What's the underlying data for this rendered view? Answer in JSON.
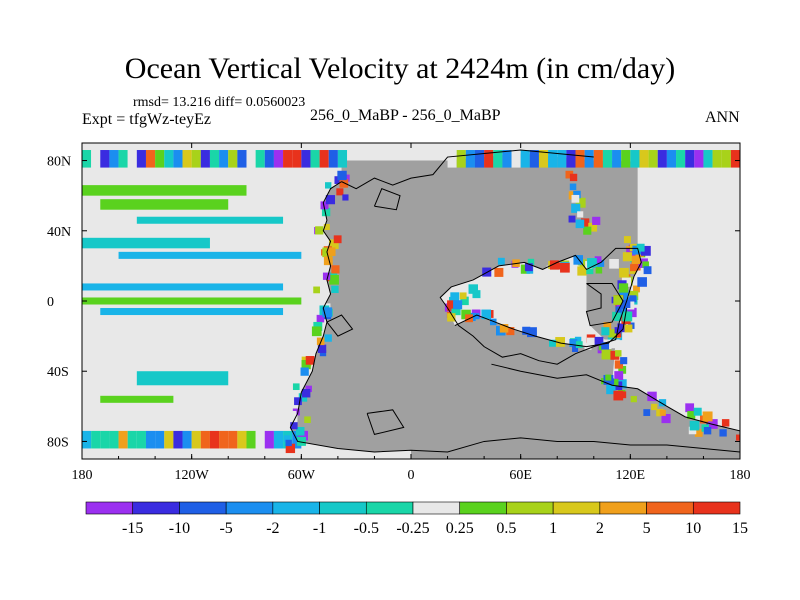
{
  "header": {
    "title": "Ocean Vertical Velocity at 2424m (in cm/day)",
    "stats": "rmsd= 13.216 diff= 0.0560023",
    "experiment": "Expt = tfgWz-teyEz",
    "subtitle": "256_0_MaBP - 256_0_MaBP",
    "season": "ANN"
  },
  "chart_data": {
    "type": "heatmap",
    "title": "Ocean Vertical Velocity at 2424m (in cm/day)",
    "xlabel": "",
    "ylabel": "",
    "xlim": [
      -180,
      180
    ],
    "ylim": [
      -90,
      90
    ],
    "x_ticks": [
      {
        "value": -180,
        "label": "180"
      },
      {
        "value": -120,
        "label": "120W"
      },
      {
        "value": -60,
        "label": "60W"
      },
      {
        "value": 0,
        "label": "0"
      },
      {
        "value": 60,
        "label": "60E"
      },
      {
        "value": 120,
        "label": "120E"
      },
      {
        "value": 180,
        "label": "180"
      }
    ],
    "y_ticks": [
      {
        "value": 80,
        "label": "80N"
      },
      {
        "value": 40,
        "label": "40N"
      },
      {
        "value": 0,
        "label": "0"
      },
      {
        "value": -40,
        "label": "40S"
      },
      {
        "value": -80,
        "label": "80S"
      }
    ],
    "colorbar": {
      "levels": [
        "-15",
        "-10",
        "-5",
        "-2",
        "-1",
        "-0.5",
        "-0.25",
        "0.25",
        "0.5",
        "1",
        "2",
        "5",
        "10",
        "15"
      ],
      "colors": [
        "#9b30f0",
        "#3a2ce0",
        "#1f5fe6",
        "#1b8ef0",
        "#19b4e8",
        "#16c8c8",
        "#1ad6a8",
        "#e8e8e8",
        "#5ad21e",
        "#a8d21a",
        "#d8c81c",
        "#f0a01c",
        "#f0641c",
        "#e8321c"
      ]
    },
    "land_color": "#a0a0a0",
    "continent_outlines": [
      {
        "name": "pangea-west-margin",
        "points": [
          [
            -38,
            68
          ],
          [
            -44,
            64
          ],
          [
            -48,
            56
          ],
          [
            -46,
            46
          ],
          [
            -48,
            40
          ],
          [
            -44,
            34
          ],
          [
            -46,
            28
          ],
          [
            -44,
            20
          ],
          [
            -46,
            12
          ],
          [
            -44,
            4
          ],
          [
            -48,
            -4
          ],
          [
            -46,
            -12
          ],
          [
            -48,
            -20
          ],
          [
            -52,
            -30
          ],
          [
            -54,
            -40
          ],
          [
            -60,
            -52
          ],
          [
            -62,
            -64
          ],
          [
            -66,
            -72
          ],
          [
            -62,
            -80
          ],
          [
            -40,
            -84
          ],
          [
            -20,
            -86
          ],
          [
            0,
            -85
          ],
          [
            20,
            -86
          ],
          [
            40,
            -80
          ],
          [
            60,
            -78
          ],
          [
            80,
            -80
          ],
          [
            100,
            -80
          ],
          [
            120,
            -82
          ],
          [
            140,
            -82
          ],
          [
            160,
            -84
          ],
          [
            180,
            -86
          ]
        ]
      },
      {
        "name": "north-coast",
        "points": [
          [
            -38,
            68
          ],
          [
            -30,
            64
          ],
          [
            -20,
            70
          ],
          [
            -10,
            66
          ],
          [
            0,
            70
          ],
          [
            12,
            72
          ],
          [
            20,
            82
          ],
          [
            40,
            84
          ],
          [
            60,
            86
          ],
          [
            80,
            84
          ],
          [
            100,
            82
          ]
        ]
      },
      {
        "name": "tethys-upper-shore",
        "points": [
          [
            20,
            -4
          ],
          [
            16,
            2
          ],
          [
            22,
            8
          ],
          [
            34,
            12
          ],
          [
            48,
            20
          ],
          [
            62,
            22
          ],
          [
            72,
            18
          ],
          [
            80,
            22
          ],
          [
            90,
            26
          ],
          [
            96,
            18
          ],
          [
            104,
            22
          ],
          [
            112,
            30
          ],
          [
            124,
            30
          ],
          [
            126,
            22
          ],
          [
            122,
            14
          ],
          [
            118,
            0
          ],
          [
            114,
            -12
          ],
          [
            112,
            -22
          ],
          [
            100,
            -26
          ],
          [
            90,
            -30
          ],
          [
            80,
            -36
          ],
          [
            70,
            -34
          ],
          [
            60,
            -30
          ],
          [
            50,
            -32
          ],
          [
            40,
            -26
          ],
          [
            34,
            -20
          ],
          [
            26,
            -14
          ],
          [
            20,
            -4
          ]
        ]
      },
      {
        "name": "tethys-lower-shore",
        "points": [
          [
            24,
            -14
          ],
          [
            36,
            -8
          ],
          [
            46,
            -12
          ],
          [
            56,
            -16
          ],
          [
            68,
            -20
          ],
          [
            82,
            -24
          ],
          [
            96,
            -26
          ],
          [
            108,
            -24
          ],
          [
            116,
            -16
          ],
          [
            118,
            -4
          ]
        ]
      },
      {
        "name": "peninsula",
        "points": [
          [
            96,
            10
          ],
          [
            110,
            10
          ],
          [
            116,
            0
          ],
          [
            110,
            -12
          ],
          [
            98,
            -14
          ],
          [
            96,
            -6
          ],
          [
            104,
            -4
          ],
          [
            104,
            4
          ],
          [
            96,
            10
          ]
        ]
      },
      {
        "name": "southern-block",
        "points": [
          [
            44,
            -36
          ],
          [
            60,
            -40
          ],
          [
            80,
            -44
          ],
          [
            96,
            -42
          ],
          [
            110,
            -48
          ],
          [
            124,
            -50
          ],
          [
            140,
            -60
          ],
          [
            150,
            -66
          ],
          [
            164,
            -70
          ],
          [
            180,
            -74
          ]
        ]
      },
      {
        "name": "island-west",
        "points": [
          [
            -46,
            -12
          ],
          [
            -38,
            -8
          ],
          [
            -32,
            -16
          ],
          [
            -40,
            -20
          ],
          [
            -46,
            -12
          ]
        ]
      },
      {
        "name": "island-south",
        "points": [
          [
            -24,
            -64
          ],
          [
            -10,
            -62
          ],
          [
            -4,
            -72
          ],
          [
            -20,
            -76
          ],
          [
            -24,
            -64
          ]
        ]
      },
      {
        "name": "north-island",
        "points": [
          [
            -20,
            54
          ],
          [
            -8,
            52
          ],
          [
            -6,
            60
          ],
          [
            -16,
            64
          ],
          [
            -20,
            54
          ]
        ]
      }
    ]
  }
}
